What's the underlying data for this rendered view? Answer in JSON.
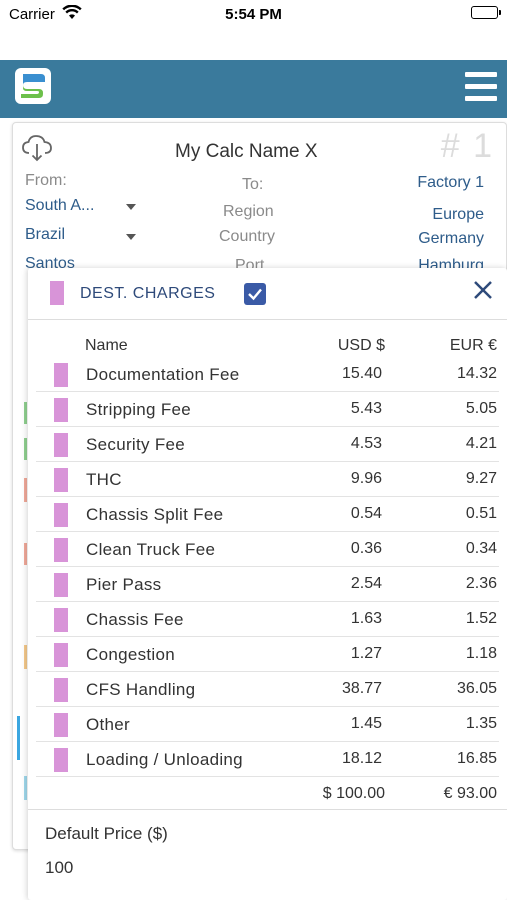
{
  "status": {
    "carrier": "Carrier",
    "time": "5:54 PM"
  },
  "calc": {
    "name": "My Calc Name X",
    "number": "# 1",
    "from_label": "From:",
    "to_label": "To:",
    "from_region": "South A...",
    "from_country": "Brazil",
    "from_port": "Santos",
    "to_region": "Region",
    "to_country": "Country",
    "to_port": "Port",
    "factory": "Factory 1",
    "factory_region": "Europe",
    "factory_country": "Germany",
    "factory_city": "Hamburg"
  },
  "dest_charges": {
    "title": "DEST. CHARGES",
    "checked": true,
    "swatch_color": "#d894d8",
    "headers": {
      "name": "Name",
      "usd": "USD $",
      "eur": "EUR €"
    },
    "rows": [
      {
        "name": "Documentation Fee",
        "usd": "15.40",
        "eur": "14.32"
      },
      {
        "name": "Stripping Fee",
        "usd": "5.43",
        "eur": "5.05"
      },
      {
        "name": "Security Fee",
        "usd": "4.53",
        "eur": "4.21"
      },
      {
        "name": "THC",
        "usd": "9.96",
        "eur": "9.27"
      },
      {
        "name": "Chassis Split Fee",
        "usd": "0.54",
        "eur": "0.51"
      },
      {
        "name": "Clean Truck Fee",
        "usd": "0.36",
        "eur": "0.34"
      },
      {
        "name": "Pier Pass",
        "usd": "2.54",
        "eur": "2.36"
      },
      {
        "name": "Chassis Fee",
        "usd": "1.63",
        "eur": "1.52"
      },
      {
        "name": "Congestion",
        "usd": "1.27",
        "eur": "1.18"
      },
      {
        "name": "CFS Handling",
        "usd": "38.77",
        "eur": "36.05"
      },
      {
        "name": "Other",
        "usd": "1.45",
        "eur": "1.35"
      },
      {
        "name": "Loading / Unloading",
        "usd": "18.12",
        "eur": "16.85"
      }
    ],
    "total_usd": "$ 100.00",
    "total_eur": "€ 93.00",
    "default_price_label": "Default Price ($)",
    "default_price_value": "100"
  },
  "colors": {
    "header": "#3a7a9c",
    "accent": "#3a5aa6",
    "swatch": "#d894d8"
  }
}
